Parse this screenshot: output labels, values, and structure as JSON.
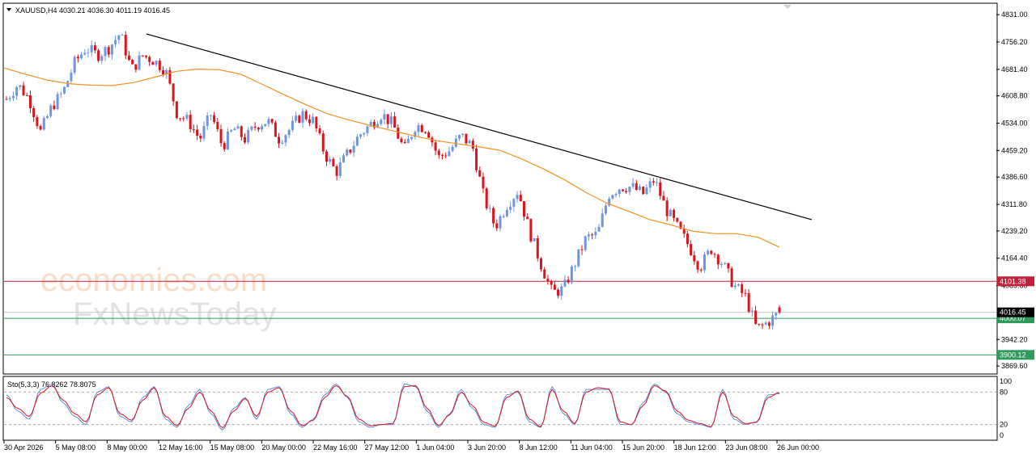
{
  "header": {
    "symbol_info": "XAUUSD,H4  4030.21 4036.30 4011.19 4016.45"
  },
  "watermark": {
    "brand1": "economies.com",
    "brand2": "FxNewsToday"
  },
  "colors": {
    "bull": "#6f96dc",
    "bear": "#d8141e",
    "ma": "#f29121",
    "trendline": "#000000",
    "resistance": "#c4203a",
    "support": "#2e9a5b",
    "stoch_main": "#5b8fe0",
    "stoch_signal": "#d8141e"
  },
  "chart_data": {
    "type": "candlestick",
    "symbol": "XAUUSD",
    "timeframe": "H4",
    "ohlc_last": {
      "open": 4030.21,
      "high": 4036.3,
      "low": 4011.19,
      "close": 4016.45
    },
    "y_ticks": [
      "4831.00",
      "4756.20",
      "4681.40",
      "4608.80",
      "4534.00",
      "4459.20",
      "4386.60",
      "4311.80",
      "4239.20",
      "4164.40",
      "4089.60",
      "4016.45",
      "3942.20",
      "3869.60"
    ],
    "ylim": [
      3850,
      4860
    ],
    "x_ticks": [
      "30 Apr 2026",
      "5 May 08:00",
      "8 May 00:00",
      "12 May 16:00",
      "15 May 08:00",
      "20 May 00:00",
      "22 May 16:00",
      "27 May 12:00",
      "1 Jun 04:00",
      "3 Jun 20:00",
      "8 Jun 12:00",
      "11 Jun 04:00",
      "15 Jun 20:00",
      "18 Jun 12:00",
      "23 Jun 08:00",
      "26 Jun 00:00"
    ],
    "levels": [
      {
        "label": "4101.38",
        "value": 4101.38,
        "kind": "resistance"
      },
      {
        "label": "4000.07",
        "value": 4000.07,
        "kind": "support"
      },
      {
        "label": "3900.12",
        "value": 3900.12,
        "kind": "support"
      }
    ],
    "current_price_label": "4016.45",
    "trendline": {
      "from": {
        "x": "8 May 04:00",
        "y": 4778
      },
      "to": {
        "x": "29 Jun 12:00",
        "y": 4270
      }
    },
    "moving_average_path": [
      4685,
      4668,
      4652,
      4642,
      4638,
      4637,
      4645,
      4660,
      4676,
      4682,
      4680,
      4668,
      4640,
      4612,
      4585,
      4560,
      4543,
      4528,
      4514,
      4500,
      4487,
      4478,
      4470,
      4460,
      4437,
      4410,
      4380,
      4345,
      4315,
      4293,
      4270,
      4255,
      4238,
      4232,
      4232,
      4222,
      4195
    ],
    "price_path": [
      4600,
      4640,
      4600,
      4510,
      4580,
      4620,
      4700,
      4740,
      4720,
      4740,
      4780,
      4680,
      4720,
      4705,
      4680,
      4560,
      4540,
      4490,
      4560,
      4470,
      4520,
      4490,
      4530,
      4540,
      4490,
      4520,
      4560,
      4540,
      4450,
      4400,
      4450,
      4500,
      4530,
      4560,
      4530,
      4460,
      4530,
      4520,
      4440,
      4460,
      4500,
      4470,
      4330,
      4250,
      4310,
      4350,
      4240,
      4150,
      4070,
      4080,
      4150,
      4220,
      4230,
      4340,
      4360,
      4360,
      4340,
      4380,
      4300,
      4250,
      4200,
      4140,
      4190,
      4150,
      4090,
      4060,
      3970,
      3990,
      4016
    ],
    "stochastic": {
      "label": "Sto(5,3,3) 76.8262 78.8075",
      "main": 76.8262,
      "signal": 78.8075,
      "levels": [
        80,
        20
      ],
      "scale_labels": [
        "100",
        "80",
        "20",
        "0"
      ],
      "main_path": [
        75,
        45,
        30,
        85,
        95,
        60,
        35,
        20,
        80,
        90,
        35,
        25,
        70,
        90,
        30,
        15,
        55,
        85,
        40,
        10,
        50,
        70,
        30,
        85,
        90,
        40,
        15,
        30,
        75,
        95,
        70,
        25,
        15,
        20,
        20,
        95,
        90,
        45,
        15,
        40,
        85,
        50,
        20,
        15,
        75,
        80,
        25,
        15,
        90,
        40,
        20,
        85,
        85,
        85,
        20,
        20,
        60,
        95,
        80,
        40,
        25,
        20,
        15,
        85,
        30,
        20,
        25,
        75,
        77
      ],
      "signal_path": [
        70,
        50,
        35,
        78,
        92,
        65,
        40,
        25,
        75,
        88,
        40,
        28,
        65,
        88,
        35,
        18,
        50,
        80,
        45,
        14,
        45,
        68,
        35,
        80,
        88,
        45,
        18,
        28,
        70,
        92,
        72,
        30,
        18,
        20,
        22,
        90,
        92,
        50,
        18,
        38,
        80,
        55,
        24,
        17,
        70,
        82,
        30,
        16,
        85,
        45,
        22,
        80,
        88,
        86,
        25,
        20,
        55,
        92,
        82,
        45,
        28,
        22,
        16,
        80,
        35,
        22,
        24,
        70,
        79
      ]
    }
  }
}
